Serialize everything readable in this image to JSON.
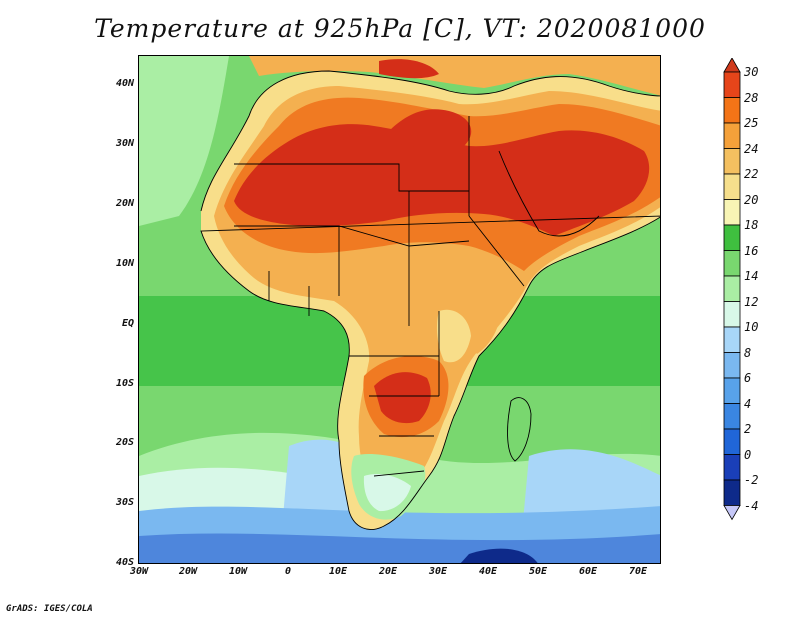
{
  "title": "Temperature at 925hPa [C], VT: 2020081000",
  "credit": "GrADS: IGES/COLA",
  "lat_labels": [
    "40N",
    "30N",
    "20N",
    "10N",
    "EQ",
    "10S",
    "20S",
    "30S",
    "40S"
  ],
  "lon_labels": [
    "30W",
    "20W",
    "10W",
    "0",
    "10E",
    "20E",
    "30E",
    "40E",
    "50E",
    "60E",
    "70E"
  ],
  "colorbar": {
    "labels": [
      "30",
      "28",
      "25",
      "24",
      "22",
      "20",
      "18",
      "16",
      "14",
      "12",
      "10",
      "8",
      "6",
      "4",
      "2",
      "0",
      "-2",
      "-4"
    ],
    "colors": [
      "#d03a1c",
      "#e6451a",
      "#f37417",
      "#f5a13a",
      "#f4c060",
      "#f6df8c",
      "#f8f5b5",
      "#3fbf3f",
      "#79d76f",
      "#aaeea4",
      "#d8f8e8",
      "#a8d6f8",
      "#7ab8f0",
      "#58a2ea",
      "#3a86e2",
      "#2066d8",
      "#1a3fb8",
      "#0e2a8a",
      "#c6c8f8"
    ]
  },
  "map_colors": {
    "ocean_cold": "#4e86dc",
    "ocean_mid": "#86bff0",
    "ocean_cool": "#d2f2f8",
    "ocean_warm": "#7dd86e",
    "ocean_tropic": "#46c44a",
    "land_hot": "#d42e18",
    "land_warm": "#f07a22",
    "land_mild": "#f4b050",
    "land_cool": "#f8de8a",
    "coast_green": "#2fb84a"
  }
}
